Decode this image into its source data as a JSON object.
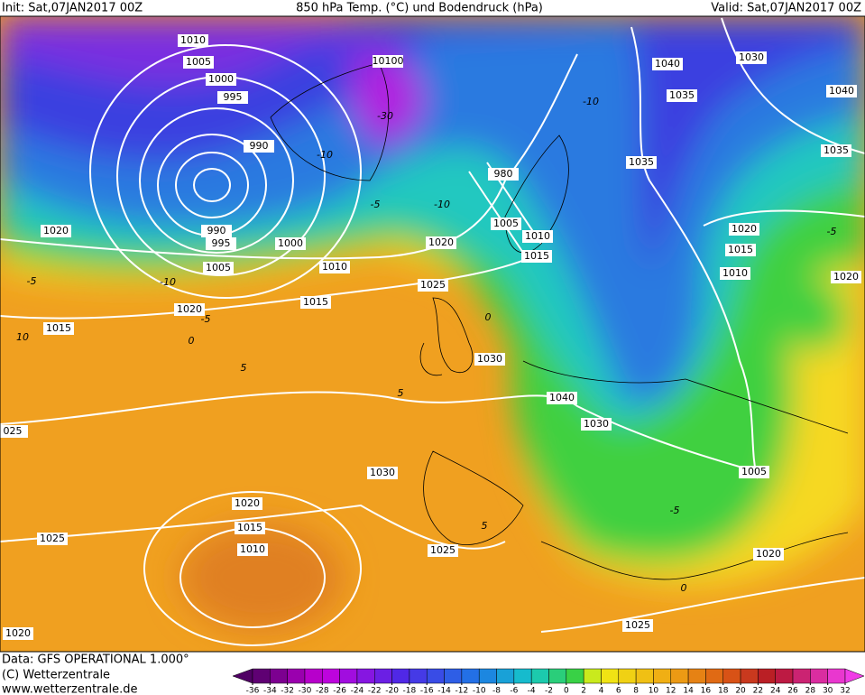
{
  "header": {
    "init": "Init: Sat,07JAN2017 00Z",
    "title": "850 hPa Temp. (°C) und Bodendruck (hPa)",
    "valid": "Valid: Sat,07JAN2017 00Z"
  },
  "footer": {
    "data_source": "Data: GFS OPERATIONAL 1.000°",
    "copyright": "(C) Wetterzentrale",
    "url": "www.wetterzentrale.de"
  },
  "colorbar": {
    "ticks": [
      -36,
      -34,
      -32,
      -30,
      -28,
      -26,
      -24,
      -22,
      -20,
      -18,
      -16,
      -14,
      -12,
      -10,
      -8,
      -6,
      -4,
      -2,
      0,
      2,
      4,
      6,
      8,
      10,
      12,
      14,
      16,
      18,
      20,
      22,
      24,
      26,
      28,
      30,
      32
    ]
  },
  "isobar_labels": [
    "1010",
    "1005",
    "1000",
    "995",
    "990",
    "990",
    "995",
    "1000",
    "1005",
    "1010",
    "1015",
    "1020",
    "1020",
    "1015",
    "10100",
    "1020",
    "1025",
    "1030",
    "980",
    "1005",
    "1010",
    "1015",
    "1040",
    "1030",
    "1040",
    "1035",
    "1035",
    "1035",
    "1020",
    "1015",
    "1010",
    "1020",
    "1040",
    "1030",
    "1005",
    "1020",
    "1025",
    "1025",
    "1030",
    "1020",
    "1015",
    "1010",
    "1025",
    "1020",
    "025"
  ],
  "temp_labels": [
    "-10",
    "-5",
    "-10",
    "-5",
    "-10",
    "10",
    "-5",
    "0",
    "5",
    "5",
    "0",
    "-10",
    "-5",
    "-5",
    "0",
    "5",
    "-30"
  ]
}
